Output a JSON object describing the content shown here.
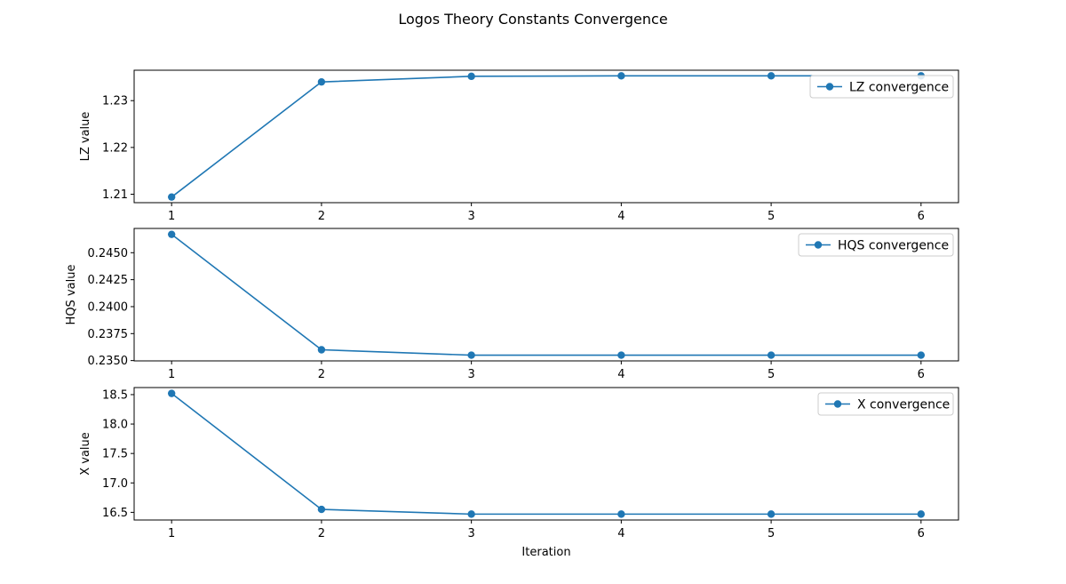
{
  "chart_data": {
    "title": "Logos Theory Constants Convergence",
    "type": "line",
    "subplots": [
      {
        "type": "line",
        "x": [
          1,
          2,
          3,
          4,
          5,
          6
        ],
        "series": [
          {
            "name": "LZ convergence",
            "values": [
              1.2094,
              1.234,
              1.2352,
              1.2353,
              1.2353,
              1.2353
            ],
            "color": "#1f77b4"
          }
        ],
        "xlabel": "",
        "ylabel": "LZ value",
        "xlim": [
          0.75,
          6.25
        ],
        "ylim": [
          1.2082,
          1.2365
        ],
        "xticks": [
          1,
          2,
          3,
          4,
          5,
          6
        ],
        "xtick_labels": [
          "1",
          "2",
          "3",
          "4",
          "5",
          "6"
        ],
        "yticks": [
          1.21,
          1.22,
          1.23
        ],
        "ytick_labels": [
          "1.21",
          "1.22",
          "1.23"
        ],
        "legend_position": "upper right",
        "grid": false
      },
      {
        "type": "line",
        "x": [
          1,
          2,
          3,
          4,
          5,
          6
        ],
        "series": [
          {
            "name": "HQS convergence",
            "values": [
              0.2467,
              0.236,
              0.2355,
              0.2355,
              0.2355,
              0.2355
            ],
            "color": "#1f77b4"
          }
        ],
        "xlabel": "",
        "ylabel": "HQS value",
        "xlim": [
          0.75,
          6.25
        ],
        "ylim": [
          0.23497,
          0.24725
        ],
        "xticks": [
          1,
          2,
          3,
          4,
          5,
          6
        ],
        "xtick_labels": [
          "1",
          "2",
          "3",
          "4",
          "5",
          "6"
        ],
        "yticks": [
          0.235,
          0.2375,
          0.24,
          0.2425,
          0.245
        ],
        "ytick_labels": [
          "0.2350",
          "0.2375",
          "0.2400",
          "0.2425",
          "0.2450"
        ],
        "legend_position": "upper right",
        "grid": false
      },
      {
        "type": "line",
        "x": [
          1,
          2,
          3,
          4,
          5,
          6
        ],
        "series": [
          {
            "name": "X convergence",
            "values": [
              18.52,
              16.55,
              16.47,
              16.47,
              16.47,
              16.47
            ],
            "color": "#1f77b4"
          }
        ],
        "xlabel": "Iteration",
        "ylabel": "X value",
        "xlim": [
          0.75,
          6.25
        ],
        "ylim": [
          16.37,
          18.62
        ],
        "xticks": [
          1,
          2,
          3,
          4,
          5,
          6
        ],
        "xtick_labels": [
          "1",
          "2",
          "3",
          "4",
          "5",
          "6"
        ],
        "yticks": [
          16.5,
          17.0,
          17.5,
          18.0,
          18.5
        ],
        "ytick_labels": [
          "16.5",
          "17.0",
          "17.5",
          "18.0",
          "18.5"
        ],
        "legend_position": "upper right",
        "grid": false
      }
    ]
  }
}
